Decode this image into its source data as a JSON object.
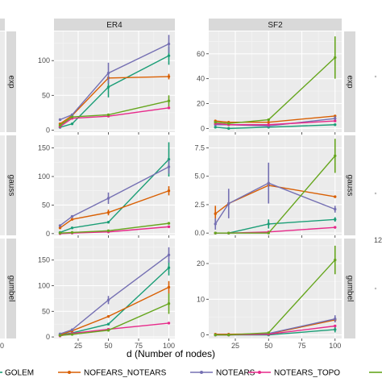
{
  "chart_data": {
    "type": "line",
    "xlabel": "d (Number of nodes)",
    "x": [
      10,
      20,
      50,
      100
    ],
    "columns": [
      "ER4",
      "SF2"
    ],
    "rows": [
      "exp",
      "gauss",
      "gumbel"
    ],
    "series_names": [
      "GOLEM",
      "NOFEARS_NOTEARS",
      "NOTEARS",
      "NOTEARS_TOPO"
    ],
    "extra_series_color": "#66a61e",
    "colors": {
      "GOLEM": "#1b9e77",
      "NOFEARS_NOTEARS": "#d95f02",
      "NOTEARS": "#7570b3",
      "NOTEARS_TOPO": "#e7298a",
      "extra": "#66a61e"
    },
    "panels": [
      {
        "column": "ER4",
        "row": "exp",
        "ylim": [
          -3,
          142
        ],
        "yticks": [
          0,
          50,
          100
        ],
        "series": [
          {
            "name": "GOLEM",
            "values": [
              4,
              9,
              62,
              107
            ],
            "errors": [
              0,
              0,
              15,
              13
            ]
          },
          {
            "name": "NOFEARS_NOTEARS",
            "values": [
              9,
              21,
              75,
              77
            ],
            "errors": [
              0,
              0,
              0,
              4
            ]
          },
          {
            "name": "NOTEARS",
            "values": [
              15,
              22,
              82,
              124
            ],
            "errors": [
              0,
              0,
              15,
              13
            ]
          },
          {
            "name": "NOTEARS_TOPO",
            "values": [
              5,
              17,
              20,
              32
            ],
            "errors": [
              0,
              0,
              0,
              0
            ]
          },
          {
            "name": "",
            "values": [
              7,
              19,
              22,
              42
            ],
            "errors": [
              0,
              0,
              0,
              8
            ]
          }
        ]
      },
      {
        "column": "SF2",
        "row": "exp",
        "ylim": [
          -3,
          78
        ],
        "yticks": [
          0,
          20,
          40,
          60
        ],
        "series": [
          {
            "name": "GOLEM",
            "values": [
              1,
              0,
              1,
              3
            ],
            "errors": [
              0,
              0,
              0,
              0
            ]
          },
          {
            "name": "NOFEARS_NOTEARS",
            "values": [
              6,
              5,
              5,
              10
            ],
            "errors": [
              0,
              0,
              0,
              0
            ]
          },
          {
            "name": "NOTEARS",
            "values": [
              3,
              3,
              2,
              8
            ],
            "errors": [
              0,
              0,
              0,
              2
            ]
          },
          {
            "name": "NOTEARS_TOPO",
            "values": [
              4,
              3,
              3,
              6
            ],
            "errors": [
              0,
              0,
              0,
              0
            ]
          },
          {
            "name": "",
            "values": [
              5,
              4,
              7,
              57
            ],
            "errors": [
              0,
              0,
              0,
              17
            ]
          }
        ]
      },
      {
        "column": "ER4",
        "row": "gauss",
        "ylim": [
          -3,
          172
        ],
        "yticks": [
          0,
          50,
          100,
          150
        ],
        "series": [
          {
            "name": "GOLEM",
            "values": [
              2,
              10,
              20,
              130
            ],
            "errors": [
              0,
              0,
              0,
              30
            ]
          },
          {
            "name": "NOFEARS_NOTEARS",
            "values": [
              10,
              25,
              37,
              75
            ],
            "errors": [
              0,
              0,
              5,
              8
            ]
          },
          {
            "name": "NOTEARS",
            "values": [
              14,
              30,
              62,
              117
            ],
            "errors": [
              0,
              0,
              10,
              12
            ]
          },
          {
            "name": "NOTEARS_TOPO",
            "values": [
              0,
              1,
              3,
              12
            ],
            "errors": [
              0,
              0,
              0,
              0
            ]
          },
          {
            "name": "",
            "values": [
              1,
              2,
              5,
              18
            ],
            "errors": [
              0,
              0,
              0,
              0
            ]
          }
        ]
      },
      {
        "column": "SF2",
        "row": "gauss",
        "ylim": [
          -0.2,
          8.6
        ],
        "yticks": [
          0.0,
          2.5,
          5.0,
          7.5
        ],
        "series": [
          {
            "name": "GOLEM",
            "values": [
              0,
              0,
              0.8,
              1.2
            ],
            "errors": [
              0,
              0,
              0.4,
              0.2
            ]
          },
          {
            "name": "NOFEARS_NOTEARS",
            "values": [
              1.7,
              2.6,
              4.2,
              3.2
            ],
            "errors": [
              0.7,
              0,
              0,
              0
            ]
          },
          {
            "name": "NOTEARS",
            "values": [
              0.8,
              2.6,
              4.4,
              2.1
            ],
            "errors": [
              0.5,
              1.3,
              1.8,
              0.3
            ]
          },
          {
            "name": "NOTEARS_TOPO",
            "values": [
              0,
              0,
              0.1,
              0.5
            ],
            "errors": [
              0,
              0,
              0,
              0
            ]
          },
          {
            "name": "",
            "values": [
              0,
              0,
              0,
              6.8
            ],
            "errors": [
              0,
              0,
              0,
              1.5
            ]
          }
        ]
      },
      {
        "column": "ER4",
        "row": "gumbel",
        "ylim": [
          -3,
          192
        ],
        "yticks": [
          0,
          50,
          100,
          150
        ],
        "series": [
          {
            "name": "GOLEM",
            "values": [
              4,
              8,
              25,
              135
            ],
            "errors": [
              0,
              0,
              0,
              15
            ]
          },
          {
            "name": "NOFEARS_NOTEARS",
            "values": [
              4,
              12,
              40,
              97
            ],
            "errors": [
              0,
              0,
              0,
              12
            ]
          },
          {
            "name": "NOTEARS",
            "values": [
              6,
              14,
              72,
              160
            ],
            "errors": [
              0,
              0,
              8,
              15
            ]
          },
          {
            "name": "NOTEARS_TOPO",
            "values": [
              2,
              7,
              15,
              27
            ],
            "errors": [
              0,
              0,
              0,
              0
            ]
          },
          {
            "name": "",
            "values": [
              3,
              5,
              13,
              65
            ],
            "errors": [
              0,
              0,
              0,
              20
            ]
          }
        ]
      },
      {
        "column": "SF2",
        "row": "gumbel",
        "ylim": [
          -1,
          27
        ],
        "yticks": [
          0,
          10,
          20
        ],
        "series": [
          {
            "name": "GOLEM",
            "values": [
              0,
              0,
              0,
              1.5
            ],
            "errors": [
              0,
              0,
              0,
              0.8
            ]
          },
          {
            "name": "NOFEARS_NOTEARS",
            "values": [
              0.2,
              0.2,
              0.3,
              4.2
            ],
            "errors": [
              0,
              0,
              0,
              0
            ]
          },
          {
            "name": "NOTEARS",
            "values": [
              0,
              0,
              0.4,
              4.5
            ],
            "errors": [
              0,
              0,
              0,
              1
            ]
          },
          {
            "name": "NOTEARS_TOPO",
            "values": [
              0,
              0,
              0.2,
              2.5
            ],
            "errors": [
              0,
              0,
              0,
              0
            ]
          },
          {
            "name": "",
            "values": [
              0,
              0,
              0.6,
              21
            ],
            "errors": [
              0,
              0,
              0,
              4
            ]
          }
        ]
      }
    ],
    "xticks": [
      25,
      50,
      75,
      100
    ],
    "left_partial_ticks": [
      "0"
    ],
    "right_partial_ticks": [
      "12"
    ],
    "grid": true,
    "legend_position": "bottom"
  }
}
